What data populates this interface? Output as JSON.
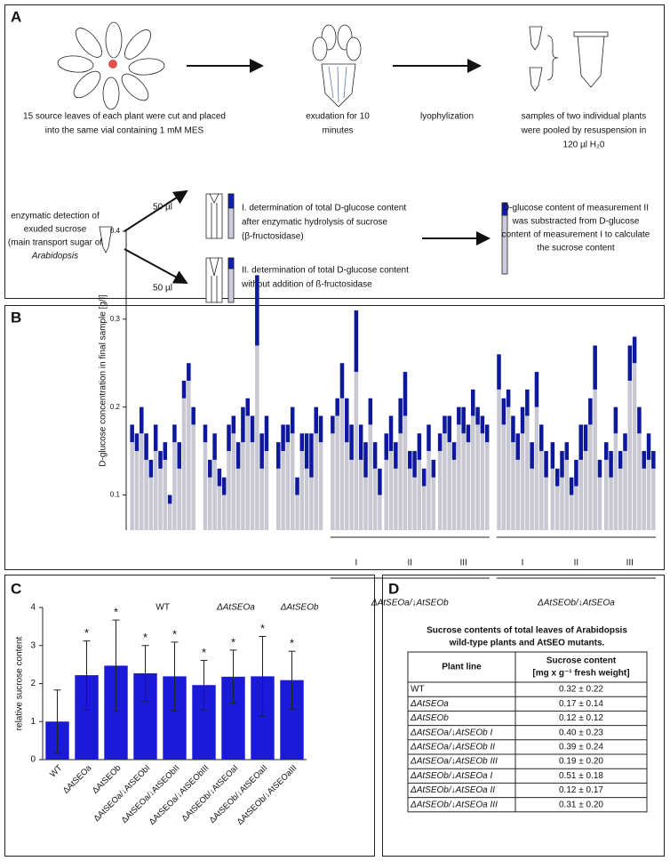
{
  "panel_a": {
    "label": "A",
    "step1": [
      "15 source leaves of each plant were cut and placed",
      "into the same vial containing 1 mM MES"
    ],
    "step2": [
      "exudation for 10",
      "minutes"
    ],
    "step3": [
      "lyophylization"
    ],
    "step4": [
      "samples of two individual plants",
      "were pooled by resuspension in",
      "120 µl H₂0"
    ],
    "detection": [
      "enzymatic detection of",
      "exuded sucrose",
      "(main transport sugar of",
      "Arabidopsis"
    ],
    "volume_1": "50 µl",
    "volume_2": "50 µl",
    "measure_1": [
      "I. determination of total D-glucose content",
      "after enzymatic hydrolysis of sucrose",
      "(β-fructosidase)"
    ],
    "measure_2": [
      "II. determination of total D-glucose content",
      "without addition of ß-fructosidase"
    ],
    "result": [
      "D-glucose content of measurement II",
      "was substracted from D-glucose",
      "content of measurement I to calculate",
      "the sucrose content"
    ]
  },
  "chart_data": [
    {
      "type": "stacked-bar",
      "label": "B",
      "ylabel": "D-glucose concentration in final sample [g/l]",
      "ylim": [
        0.06,
        0.4
      ],
      "yticks": [
        0.1,
        0.2,
        0.3,
        0.4
      ],
      "colors": [
        "#c8c8d2",
        "#0d189c"
      ],
      "groups": [
        {
          "label": "WT",
          "series": [
            [
              0.16,
              0.15,
              0.17,
              0.14,
              0.12,
              0.15,
              0.13,
              0.14,
              0.09,
              0.16,
              0.13,
              0.21,
              0.23,
              0.18
            ],
            [
              0.02,
              0.02,
              0.03,
              0.03,
              0.02,
              0.03,
              0.02,
              0.02,
              0.01,
              0.02,
              0.03,
              0.02,
              0.02,
              0.02
            ]
          ]
        },
        {
          "label": "ΔAtSEOa",
          "series": [
            [
              0.16,
              0.12,
              0.14,
              0.11,
              0.1,
              0.15,
              0.17,
              0.13,
              0.16,
              0.19,
              0.16,
              0.27,
              0.13,
              0.15
            ],
            [
              0.02,
              0.02,
              0.03,
              0.02,
              0.02,
              0.03,
              0.02,
              0.03,
              0.04,
              0.02,
              0.03,
              0.08,
              0.04,
              0.04
            ]
          ]
        },
        {
          "label": "ΔAtSEOb",
          "series": [
            [
              0.13,
              0.15,
              0.16,
              0.17,
              0.1,
              0.15,
              0.13,
              0.12,
              0.17,
              0.16
            ],
            [
              0.03,
              0.03,
              0.02,
              0.03,
              0.02,
              0.02,
              0.04,
              0.05,
              0.03,
              0.03
            ]
          ]
        },
        {
          "label": "ΔAtSEOa/↓AtSEOb",
          "subgroups": [
            {
              "label": "I",
              "series": [
                [
                  0.17,
                  0.19,
                  0.21,
                  0.16,
                  0.14,
                  0.24,
                  0.14,
                  0.12,
                  0.18,
                  0.13,
                  0.1
                ],
                [
                  0.02,
                  0.02,
                  0.04,
                  0.05,
                  0.04,
                  0.07,
                  0.04,
                  0.04,
                  0.03,
                  0.03,
                  0.03
                ]
              ]
            },
            {
              "label": "II",
              "series": [
                [
                  0.14,
                  0.15,
                  0.13,
                  0.17,
                  0.19,
                  0.13,
                  0.12,
                  0.14,
                  0.11,
                  0.15,
                  0.12
                ],
                [
                  0.03,
                  0.04,
                  0.03,
                  0.04,
                  0.05,
                  0.02,
                  0.03,
                  0.03,
                  0.02,
                  0.03,
                  0.02
                ]
              ]
            },
            {
              "label": "III",
              "series": [
                [
                  0.15,
                  0.17,
                  0.16,
                  0.14,
                  0.18,
                  0.17,
                  0.16,
                  0.19,
                  0.18,
                  0.17,
                  0.16
                ],
                [
                  0.02,
                  0.02,
                  0.03,
                  0.02,
                  0.02,
                  0.03,
                  0.02,
                  0.03,
                  0.02,
                  0.02,
                  0.02
                ]
              ]
            }
          ]
        },
        {
          "label": "ΔAtSEOb/↓AtSEOa",
          "subgroups": [
            {
              "label": "I",
              "series": [
                [
                  0.22,
                  0.18,
                  0.2,
                  0.16,
                  0.14,
                  0.17,
                  0.19,
                  0.13,
                  0.2,
                  0.15,
                  0.12
                ],
                [
                  0.04,
                  0.03,
                  0.02,
                  0.03,
                  0.03,
                  0.03,
                  0.03,
                  0.03,
                  0.04,
                  0.03,
                  0.03
                ]
              ]
            },
            {
              "label": "II",
              "series": [
                [
                  0.13,
                  0.11,
                  0.12,
                  0.14,
                  0.1,
                  0.11,
                  0.14,
                  0.15,
                  0.18,
                  0.22,
                  0.12
                ],
                [
                  0.03,
                  0.02,
                  0.03,
                  0.02,
                  0.02,
                  0.03,
                  0.04,
                  0.03,
                  0.03,
                  0.05,
                  0.02
                ]
              ]
            },
            {
              "label": "III",
              "series": [
                [
                  0.14,
                  0.12,
                  0.17,
                  0.13,
                  0.15,
                  0.23,
                  0.25,
                  0.17,
                  0.13,
                  0.14,
                  0.13
                ],
                [
                  0.02,
                  0.03,
                  0.03,
                  0.02,
                  0.02,
                  0.04,
                  0.03,
                  0.03,
                  0.02,
                  0.03,
                  0.02
                ]
              ]
            }
          ]
        }
      ]
    },
    {
      "type": "bar",
      "label": "C",
      "ylabel": "relative sucrose content",
      "categories": [
        "WT",
        "ΔAtSEOa",
        "ΔAtSEOb",
        "ΔAtSEOa/↓AtSEObI",
        "ΔAtSEOa/↓AtSEObII",
        "ΔAtSEOa/↓AtSEObIII",
        "ΔAtSEOb/↓AtSEOaI",
        "ΔAtSEOb/↓AtSEOaII",
        "ΔAtSEOb/↓AtSEOaIII"
      ],
      "values": [
        1.0,
        2.22,
        2.47,
        2.27,
        2.19,
        1.96,
        2.18,
        2.19,
        2.09
      ],
      "errors": [
        0.83,
        0.9,
        1.2,
        0.73,
        0.9,
        0.65,
        0.7,
        1.05,
        0.76
      ],
      "significance": [
        null,
        "*",
        "*",
        "*",
        "*",
        "*",
        "*",
        "*",
        "*"
      ],
      "color": "#1a1ad8",
      "ylim": [
        0,
        4
      ],
      "yticks": [
        0,
        1,
        2,
        3,
        4
      ]
    }
  ],
  "panel_d": {
    "label": "D",
    "title": [
      "Sucrose contents of total leaves of Arabidopsis",
      "wild-type plants and AtSEO mutants."
    ],
    "header": [
      "Plant line",
      [
        "Sucrose content",
        "[mg x g⁻¹ fresh weight]"
      ]
    ],
    "rows": [
      [
        "WT",
        "0.32 ± 0.22"
      ],
      [
        "ΔAtSEOa",
        "0.17 ± 0.14"
      ],
      [
        "ΔAtSEOb",
        "0.12 ± 0.12"
      ],
      [
        "ΔAtSEOa/↓AtSEOb I",
        "0.40 ± 0.23"
      ],
      [
        "ΔAtSEOa/↓AtSEOb II",
        "0.39 ± 0.24"
      ],
      [
        "ΔAtSEOa/↓AtSEOb III",
        "0.19 ± 0.20"
      ],
      [
        "ΔAtSEOb/↓AtSEOa I",
        "0.51 ± 0.18"
      ],
      [
        "ΔAtSEOb/↓AtSEOa II",
        "0.12 ± 0.17"
      ],
      [
        "ΔAtSEOb/↓AtSEOa III",
        "0.31 ± 0.20"
      ]
    ]
  }
}
